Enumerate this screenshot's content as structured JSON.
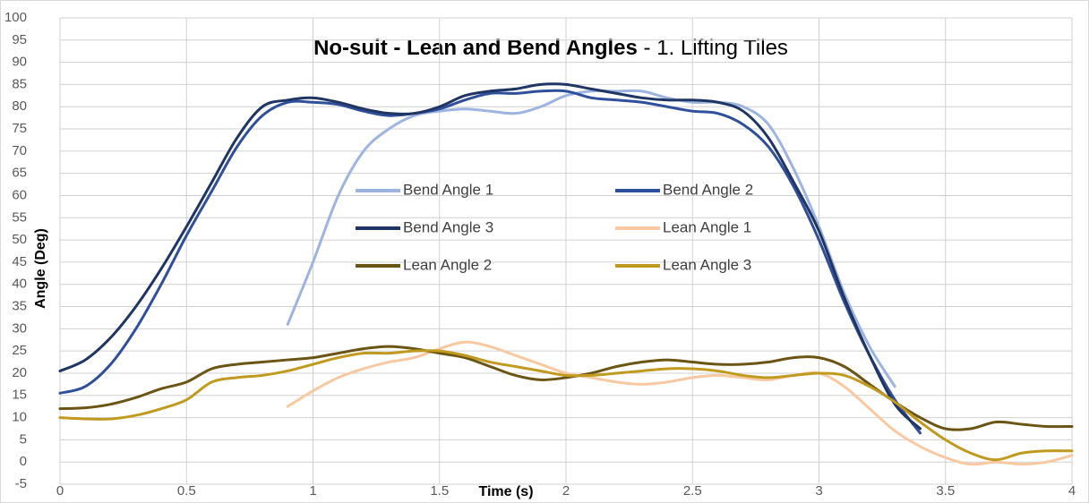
{
  "chart_data": {
    "type": "line",
    "title": {
      "bold": "No-suit - Lean and Bend Angles",
      "rest": " - 1. Lifting Tiles"
    },
    "xlabel": "Time (s)",
    "ylabel": "Angle (Deg)",
    "x": [
      0,
      0.1,
      0.2,
      0.3,
      0.4,
      0.5,
      0.6,
      0.7,
      0.8,
      0.9,
      1,
      1.1,
      1.2,
      1.3,
      1.4,
      1.5,
      1.6,
      1.7,
      1.8,
      1.9,
      2,
      2.1,
      2.2,
      2.3,
      2.4,
      2.5,
      2.6,
      2.7,
      2.8,
      2.9,
      3,
      3.1,
      3.2,
      3.3,
      3.4,
      3.5,
      3.6,
      3.7,
      3.8,
      3.9,
      4
    ],
    "series": [
      {
        "name": "Bend Angle 1",
        "color": "#9db3e0",
        "values": [
          null,
          null,
          null,
          null,
          null,
          null,
          null,
          null,
          null,
          31,
          45,
          60,
          70,
          75,
          78,
          79,
          79.5,
          79,
          78.5,
          80,
          82.5,
          83.5,
          83.5,
          83.5,
          82,
          81,
          81,
          80,
          76,
          66,
          53,
          38,
          26,
          17,
          null,
          null,
          null,
          null,
          null,
          null,
          null
        ]
      },
      {
        "name": "Bend Angle 2",
        "color": "#2f4f9a",
        "values": [
          15.5,
          17,
          22,
          30,
          40,
          51,
          61,
          71,
          78,
          81,
          81,
          80.5,
          79,
          78,
          78.5,
          79.5,
          81.5,
          83,
          83,
          83.5,
          83.5,
          82,
          81.5,
          81,
          80,
          79,
          78.5,
          76,
          71,
          62,
          50,
          36,
          24,
          14,
          6.5,
          null,
          null,
          null,
          null,
          null,
          null
        ]
      },
      {
        "name": "Bend Angle 3",
        "color": "#1f3563",
        "values": [
          20.5,
          23,
          28,
          35,
          43.5,
          53,
          63,
          73,
          80,
          81.5,
          82,
          81,
          79.5,
          78.5,
          78.5,
          80,
          82.5,
          83.5,
          84,
          85,
          85,
          84,
          83,
          82,
          81.5,
          81.5,
          81,
          79,
          73,
          63,
          52,
          37,
          24,
          13,
          7.5,
          null,
          null,
          null,
          null,
          null,
          null
        ]
      },
      {
        "name": "Lean Angle 1",
        "color": "#f8c8a0",
        "values": [
          null,
          null,
          null,
          null,
          null,
          null,
          null,
          null,
          null,
          12.5,
          16,
          19,
          21,
          22.5,
          23.5,
          25.5,
          27,
          26,
          24,
          22,
          20,
          19,
          18,
          17.5,
          18,
          19,
          19.5,
          19,
          18.5,
          19.5,
          20,
          17,
          12,
          7,
          3.5,
          1,
          -0.5,
          0,
          -0.5,
          0,
          1.5
        ]
      },
      {
        "name": "Lean Angle 2",
        "color": "#6b5514",
        "values": [
          12,
          12.2,
          13,
          14.5,
          16.5,
          18,
          21,
          22,
          22.5,
          23,
          23.5,
          24.5,
          25.5,
          26,
          25.5,
          24.5,
          23.5,
          21.5,
          19.5,
          18.5,
          19,
          20,
          21.5,
          22.5,
          23,
          22.5,
          22,
          22,
          22.5,
          23.5,
          23.5,
          21.5,
          17.5,
          13.5,
          10,
          7.5,
          7.5,
          9,
          8.5,
          8,
          8
        ]
      },
      {
        "name": "Lean Angle 3",
        "color": "#c09a1e",
        "values": [
          10,
          9.7,
          9.7,
          10.5,
          12,
          14,
          18,
          19,
          19.5,
          20.5,
          22,
          23.5,
          24.5,
          24.5,
          25,
          25,
          24,
          22.5,
          21.5,
          20.5,
          19.5,
          19.5,
          20,
          20.5,
          21,
          21,
          20.5,
          19.5,
          19,
          19.5,
          20,
          19.5,
          17,
          13.5,
          9,
          5,
          2,
          0.5,
          2,
          2.5,
          2.5
        ]
      }
    ],
    "xlim": [
      0,
      4
    ],
    "xticks": [
      0,
      0.5,
      1,
      1.5,
      2,
      2.5,
      3,
      3.5,
      4
    ],
    "ylim": [
      -5,
      100
    ],
    "yticks": [
      -5,
      0,
      5,
      10,
      15,
      20,
      25,
      30,
      35,
      40,
      45,
      50,
      55,
      60,
      65,
      70,
      75,
      80,
      85,
      90,
      95,
      100
    ],
    "grid": true
  }
}
